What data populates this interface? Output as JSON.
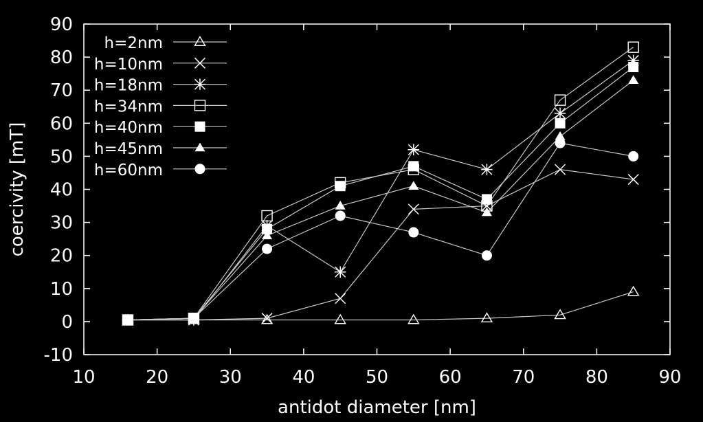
{
  "chart_data": {
    "type": "line",
    "xlabel": "antidot diameter [nm]",
    "ylabel": "coercivity [mT]",
    "xlim": [
      10,
      90
    ],
    "ylim": [
      -10,
      90
    ],
    "xticks": [
      10,
      20,
      30,
      40,
      50,
      60,
      70,
      80,
      90
    ],
    "yticks": [
      -10,
      0,
      10,
      20,
      30,
      40,
      50,
      60,
      70,
      80,
      90
    ],
    "grid": false,
    "legend": "top-left",
    "colors": {
      "background": "#000000",
      "foreground": "#ffffff",
      "line": "#c8c8c8"
    },
    "series": [
      {
        "name": "h=2nm",
        "marker": "triangle-open",
        "x": [
          16,
          25,
          35,
          45,
          55,
          65,
          75,
          85
        ],
        "y": [
          0.5,
          0.5,
          0.5,
          0.5,
          0.5,
          1,
          2,
          9
        ]
      },
      {
        "name": "h=10nm",
        "marker": "cross",
        "x": [
          16,
          25,
          35,
          45,
          55,
          65,
          75,
          85
        ],
        "y": [
          0.5,
          0.5,
          1,
          7,
          34,
          35,
          46,
          43
        ]
      },
      {
        "name": "h=18nm",
        "marker": "star",
        "x": [
          16,
          25,
          35,
          45,
          55,
          65,
          75,
          85
        ],
        "y": [
          0.5,
          0.5,
          29,
          15,
          52,
          46,
          63,
          79
        ]
      },
      {
        "name": "h=34nm",
        "marker": "square-open",
        "x": [
          16,
          25,
          35,
          45,
          55,
          65,
          75,
          85
        ],
        "y": [
          0.5,
          1,
          32,
          42,
          46,
          35,
          67,
          83
        ]
      },
      {
        "name": "h=40nm",
        "marker": "square-filled",
        "x": [
          16,
          25,
          35,
          45,
          55,
          65,
          75,
          85
        ],
        "y": [
          0.5,
          1,
          28,
          41,
          47,
          37,
          60,
          77
        ]
      },
      {
        "name": "h=45nm",
        "marker": "triangle-filled",
        "x": [
          16,
          25,
          35,
          45,
          55,
          65,
          75,
          85
        ],
        "y": [
          0.5,
          1,
          26,
          35,
          41,
          33,
          56,
          73
        ]
      },
      {
        "name": "h=60nm",
        "marker": "circle-filled",
        "x": [
          16,
          25,
          35,
          45,
          55,
          65,
          75,
          85
        ],
        "y": [
          0.5,
          1,
          22,
          32,
          27,
          20,
          54,
          50
        ]
      }
    ]
  }
}
